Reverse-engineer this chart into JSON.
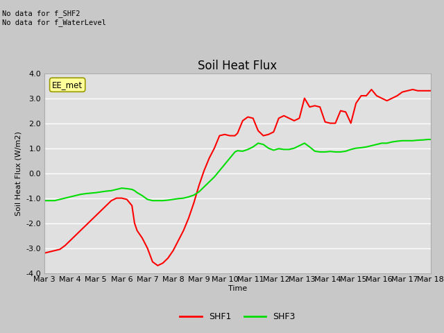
{
  "title": "Soil Heat Flux",
  "ylabel": "Soil Heat Flux (W/m2)",
  "xlabel": "Time",
  "ylim": [
    -4.0,
    4.0
  ],
  "yticks": [
    -4.0,
    -3.0,
    -2.0,
    -1.0,
    0.0,
    1.0,
    2.0,
    3.0,
    4.0
  ],
  "fig_bg_color": "#c8c8c8",
  "plot_bg_color": "#e0e0e0",
  "grid_color": "white",
  "shf1_color": "#ff0000",
  "shf3_color": "#00dd00",
  "annotation_text": "No data for f_SHF2\nNo data for f_WaterLevel",
  "legend_box_color": "#ffff99",
  "legend_box_label": "EE_met",
  "title_fontsize": 12,
  "axis_fontsize": 8,
  "shf1_x": [
    0,
    0.4,
    0.8,
    1.2,
    1.6,
    2.0,
    2.4,
    2.8,
    3.2,
    3.6,
    4.0,
    4.4,
    4.8,
    5.2,
    5.6,
    6.0,
    6.4,
    6.8,
    7.0,
    7.2,
    7.6,
    8.0,
    8.4,
    8.8,
    9.2,
    9.6,
    10.0,
    10.4,
    10.8,
    11.2,
    11.6,
    12.0,
    12.4,
    12.8,
    13.2,
    13.6,
    14.0,
    14.4,
    14.8,
    15.0,
    15.4,
    15.8,
    16.2,
    16.6,
    17.0,
    17.4,
    17.8,
    18.2,
    18.6,
    19.0,
    19.4,
    19.8,
    20.2,
    20.6,
    21.0,
    21.4,
    21.8,
    22.2,
    22.6,
    23.0,
    23.4,
    23.8,
    24.2,
    24.6,
    25.0,
    25.4,
    25.8,
    26.2,
    26.6,
    27.0,
    27.4,
    27.8,
    28.2,
    28.6,
    29.0,
    29.4,
    29.8,
    30.0
  ],
  "shf1_y": [
    -3.2,
    -3.15,
    -3.1,
    -3.05,
    -2.9,
    -2.7,
    -2.5,
    -2.3,
    -2.1,
    -1.9,
    -1.7,
    -1.5,
    -1.3,
    -1.1,
    -1.0,
    -1.0,
    -1.05,
    -1.3,
    -2.0,
    -2.3,
    -2.6,
    -3.0,
    -3.55,
    -3.7,
    -3.6,
    -3.4,
    -3.1,
    -2.7,
    -2.3,
    -1.8,
    -1.2,
    -0.5,
    0.1,
    0.6,
    1.0,
    1.5,
    1.55,
    1.5,
    1.5,
    1.6,
    2.1,
    2.25,
    2.2,
    1.7,
    1.5,
    1.55,
    1.65,
    2.2,
    2.3,
    2.2,
    2.1,
    2.2,
    3.0,
    2.65,
    2.7,
    2.65,
    2.05,
    2.0,
    2.0,
    2.5,
    2.45,
    2.0,
    2.8,
    3.1,
    3.1,
    3.35,
    3.1,
    3.0,
    2.9,
    3.0,
    3.1,
    3.25,
    3.3,
    3.35,
    3.3,
    3.3,
    3.3,
    3.3
  ],
  "shf3_x": [
    0,
    0.4,
    0.8,
    1.2,
    1.6,
    2.0,
    2.4,
    2.8,
    3.2,
    3.6,
    4.0,
    4.4,
    4.8,
    5.2,
    5.6,
    6.0,
    6.4,
    6.8,
    7.0,
    7.2,
    7.6,
    8.0,
    8.4,
    8.8,
    9.2,
    9.6,
    10.0,
    10.4,
    10.8,
    11.2,
    11.6,
    12.0,
    12.4,
    12.8,
    13.2,
    13.6,
    14.0,
    14.4,
    14.8,
    15.0,
    15.4,
    15.8,
    16.2,
    16.6,
    17.0,
    17.4,
    17.8,
    18.2,
    18.6,
    19.0,
    19.4,
    19.8,
    20.2,
    20.6,
    21.0,
    21.4,
    21.8,
    22.2,
    22.6,
    23.0,
    23.4,
    23.8,
    24.2,
    24.6,
    25.0,
    25.4,
    25.8,
    26.2,
    26.6,
    27.0,
    27.4,
    27.8,
    28.2,
    28.6,
    29.0,
    29.4,
    29.8,
    30.0
  ],
  "shf3_y": [
    -1.1,
    -1.1,
    -1.1,
    -1.05,
    -1.0,
    -0.95,
    -0.9,
    -0.85,
    -0.82,
    -0.8,
    -0.78,
    -0.75,
    -0.72,
    -0.7,
    -0.65,
    -0.6,
    -0.62,
    -0.65,
    -0.7,
    -0.78,
    -0.9,
    -1.05,
    -1.1,
    -1.1,
    -1.1,
    -1.08,
    -1.05,
    -1.02,
    -1.0,
    -0.95,
    -0.88,
    -0.75,
    -0.55,
    -0.35,
    -0.15,
    0.1,
    0.35,
    0.6,
    0.85,
    0.9,
    0.88,
    0.95,
    1.05,
    1.2,
    1.15,
    1.0,
    0.92,
    0.98,
    0.95,
    0.95,
    1.0,
    1.1,
    1.2,
    1.05,
    0.88,
    0.85,
    0.85,
    0.87,
    0.85,
    0.85,
    0.88,
    0.95,
    1.0,
    1.02,
    1.05,
    1.1,
    1.15,
    1.2,
    1.2,
    1.25,
    1.28,
    1.3,
    1.3,
    1.3,
    1.32,
    1.33,
    1.35,
    1.35
  ],
  "xtick_labels": [
    "Mar 3",
    "Mar 4",
    "Mar 5",
    "Mar 6",
    "Mar 7",
    "Mar 8",
    "Mar 9",
    "Mar 10",
    "Mar 11",
    "Mar 12",
    "Mar 13",
    "Mar 14",
    "Mar 15",
    "Mar 16",
    "Mar 17",
    "Mar 18"
  ],
  "xtick_positions": [
    0,
    2,
    4,
    6,
    8,
    10,
    12,
    14,
    16,
    18,
    20,
    22,
    24,
    26,
    28,
    30
  ]
}
